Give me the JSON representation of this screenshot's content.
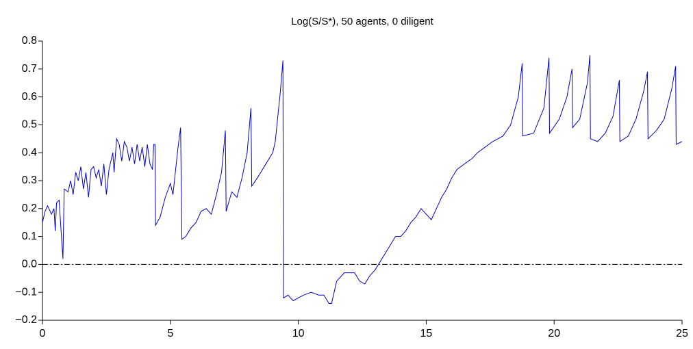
{
  "chart_data": {
    "type": "line",
    "title": "Log(S/S*), 50 agents, 0 diligent",
    "x": [
      0,
      0.1,
      0.2,
      0.35,
      0.45,
      0.5,
      0.55,
      0.65,
      0.8,
      0.85,
      1.0,
      1.1,
      1.2,
      1.3,
      1.4,
      1.5,
      1.6,
      1.7,
      1.8,
      1.9,
      2.0,
      2.1,
      2.2,
      2.3,
      2.4,
      2.5,
      2.6,
      2.75,
      2.8,
      2.9,
      3.0,
      3.1,
      3.2,
      3.3,
      3.4,
      3.5,
      3.6,
      3.7,
      3.8,
      3.9,
      4.0,
      4.1,
      4.2,
      4.3,
      4.35,
      4.4,
      4.42,
      4.6,
      4.8,
      5.0,
      5.1,
      5.3,
      5.4,
      5.45,
      5.6,
      5.8,
      6.0,
      6.2,
      6.4,
      6.6,
      6.8,
      7.0,
      7.15,
      7.18,
      7.4,
      7.6,
      7.8,
      8.0,
      8.15,
      8.18,
      8.4,
      8.6,
      8.8,
      9.0,
      9.1,
      9.3,
      9.4,
      9.42,
      9.6,
      9.8,
      10.0,
      10.2,
      10.5,
      10.8,
      11.0,
      11.2,
      11.3,
      11.5,
      11.8,
      12.0,
      12.2,
      12.4,
      12.6,
      12.8,
      13.0,
      13.2,
      13.4,
      13.6,
      13.8,
      14.0,
      14.2,
      14.4,
      14.6,
      14.8,
      15.0,
      15.2,
      15.4,
      15.6,
      15.8,
      16.0,
      16.2,
      16.5,
      16.8,
      17.0,
      17.3,
      17.6,
      18.0,
      18.3,
      18.6,
      18.75,
      18.77,
      19.2,
      19.6,
      19.8,
      19.82,
      20.2,
      20.5,
      20.7,
      20.72,
      21.0,
      21.3,
      21.4,
      21.42,
      21.7,
      22.0,
      22.3,
      22.55,
      22.57,
      22.9,
      23.2,
      23.5,
      23.65,
      23.67,
      24.0,
      24.3,
      24.6,
      24.75,
      24.77,
      25.0
    ],
    "series": [
      {
        "color": "#0000cc",
        "values": [
          0.15,
          0.19,
          0.21,
          0.18,
          0.2,
          0.12,
          0.22,
          0.23,
          0.02,
          0.27,
          0.26,
          0.3,
          0.25,
          0.33,
          0.3,
          0.35,
          0.27,
          0.33,
          0.24,
          0.34,
          0.35,
          0.31,
          0.34,
          0.28,
          0.36,
          0.25,
          0.34,
          0.4,
          0.33,
          0.45,
          0.43,
          0.37,
          0.44,
          0.42,
          0.37,
          0.42,
          0.36,
          0.43,
          0.37,
          0.42,
          0.35,
          0.43,
          0.36,
          0.34,
          0.43,
          0.43,
          0.14,
          0.17,
          0.24,
          0.29,
          0.25,
          0.42,
          0.49,
          0.09,
          0.1,
          0.13,
          0.15,
          0.19,
          0.2,
          0.18,
          0.25,
          0.33,
          0.48,
          0.19,
          0.26,
          0.24,
          0.31,
          0.4,
          0.56,
          0.28,
          0.31,
          0.34,
          0.37,
          0.4,
          0.44,
          0.62,
          0.73,
          -0.12,
          -0.11,
          -0.13,
          -0.12,
          -0.11,
          -0.1,
          -0.11,
          -0.11,
          -0.14,
          -0.14,
          -0.06,
          -0.03,
          -0.03,
          -0.03,
          -0.06,
          -0.07,
          -0.04,
          -0.02,
          0.01,
          0.04,
          0.07,
          0.1,
          0.1,
          0.12,
          0.15,
          0.17,
          0.2,
          0.18,
          0.16,
          0.2,
          0.24,
          0.27,
          0.31,
          0.34,
          0.36,
          0.38,
          0.4,
          0.42,
          0.44,
          0.46,
          0.5,
          0.6,
          0.72,
          0.46,
          0.47,
          0.56,
          0.74,
          0.47,
          0.52,
          0.6,
          0.7,
          0.49,
          0.52,
          0.65,
          0.75,
          0.45,
          0.44,
          0.47,
          0.53,
          0.66,
          0.44,
          0.46,
          0.52,
          0.62,
          0.69,
          0.45,
          0.48,
          0.52,
          0.63,
          0.71,
          0.43,
          0.44
        ]
      }
    ],
    "xlim": [
      0,
      25
    ],
    "xticks": [
      0,
      5,
      10,
      15,
      20,
      25
    ],
    "ylim": [
      -0.2,
      0.8
    ],
    "yticks": [
      {
        "value": -0.2,
        "label": "−0.2"
      },
      {
        "value": -0.1,
        "label": "−0.1"
      },
      {
        "value": 0,
        "label": "0.0"
      },
      0.1,
      0.2,
      0.3,
      0.4,
      0.5,
      0.6,
      0.7,
      0.8
    ],
    "reference_line": {
      "value": 0,
      "color": "#000000",
      "style": "dash-dot"
    },
    "grid": false
  }
}
